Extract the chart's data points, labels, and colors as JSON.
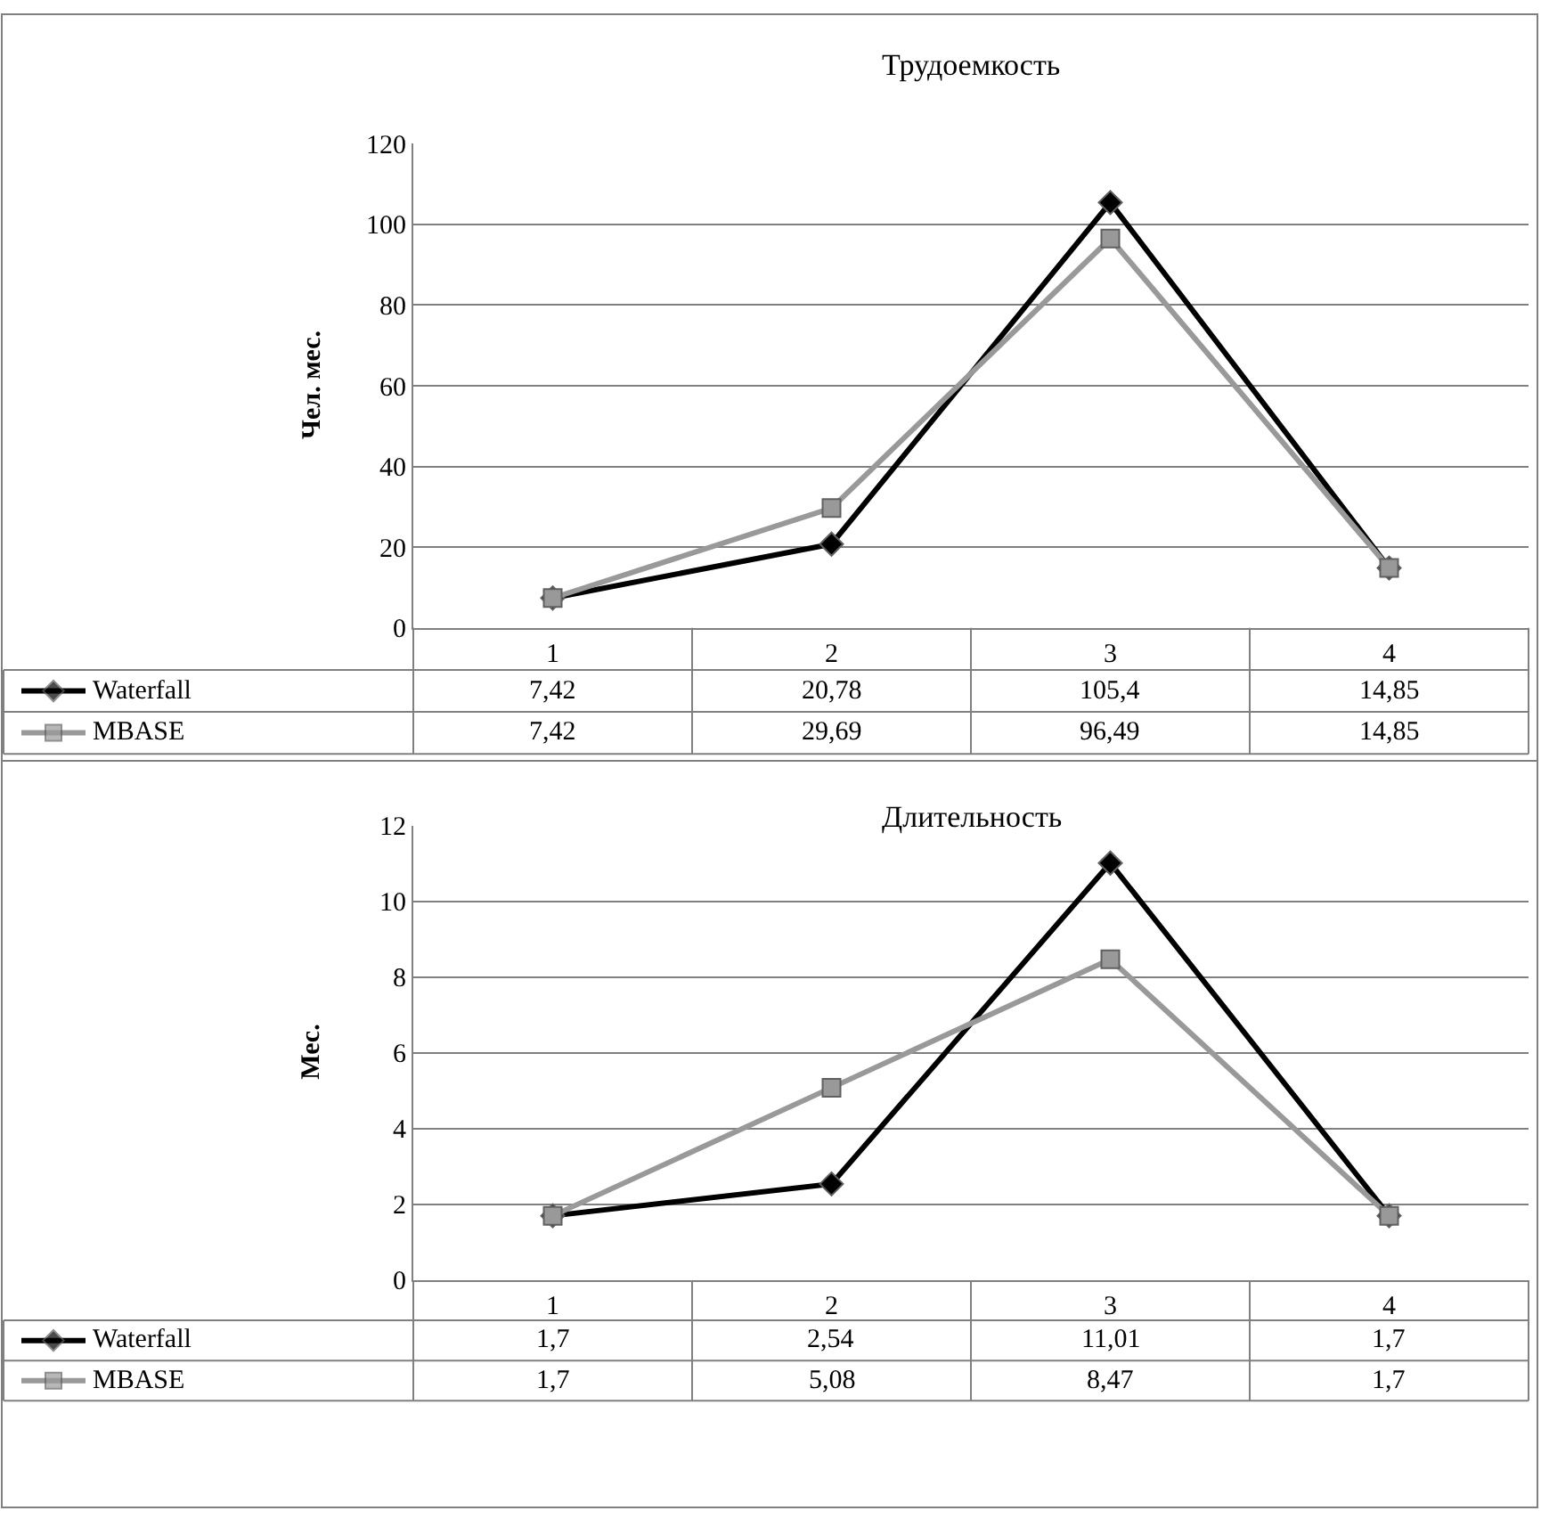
{
  "chart_data": [
    {
      "type": "line",
      "title": "Трудоемкость",
      "ylabel": "Чел. мес.",
      "categories": [
        "1",
        "2",
        "3",
        "4"
      ],
      "ylim": [
        0,
        120
      ],
      "yticks": [
        0,
        20,
        40,
        60,
        80,
        100,
        120
      ],
      "grid": "y",
      "data_labels": true,
      "legend": "bottom",
      "series": [
        {
          "name": "Waterfall",
          "color": "#000000",
          "marker": "diamond",
          "values": [
            7.42,
            20.78,
            105.4,
            14.85
          ],
          "value_labels": [
            "7,42",
            "20,78",
            "105,4",
            "14,85"
          ]
        },
        {
          "name": "MBASE",
          "color": "#999999",
          "marker": "square",
          "values": [
            7.42,
            29.69,
            96.49,
            14.85
          ],
          "value_labels": [
            "7,42",
            "29,69",
            "96,49",
            "14,85"
          ]
        }
      ]
    },
    {
      "type": "line",
      "title": "Длительность",
      "ylabel": "Мес.",
      "categories": [
        "1",
        "2",
        "3",
        "4"
      ],
      "ylim": [
        0,
        12
      ],
      "yticks": [
        0,
        2,
        4,
        6,
        8,
        10,
        12
      ],
      "grid": "y",
      "data_labels": true,
      "legend": "bottom",
      "series": [
        {
          "name": "Waterfall",
          "color": "#000000",
          "marker": "diamond",
          "values": [
            1.7,
            2.54,
            11.01,
            1.7
          ],
          "value_labels": [
            "1,7",
            "2,54",
            "11,01",
            "1,7"
          ]
        },
        {
          "name": "MBASE",
          "color": "#999999",
          "marker": "square",
          "values": [
            1.7,
            5.08,
            8.47,
            1.7
          ],
          "value_labels": [
            "1,7",
            "5,08",
            "8,47",
            "1,7"
          ]
        }
      ]
    }
  ]
}
